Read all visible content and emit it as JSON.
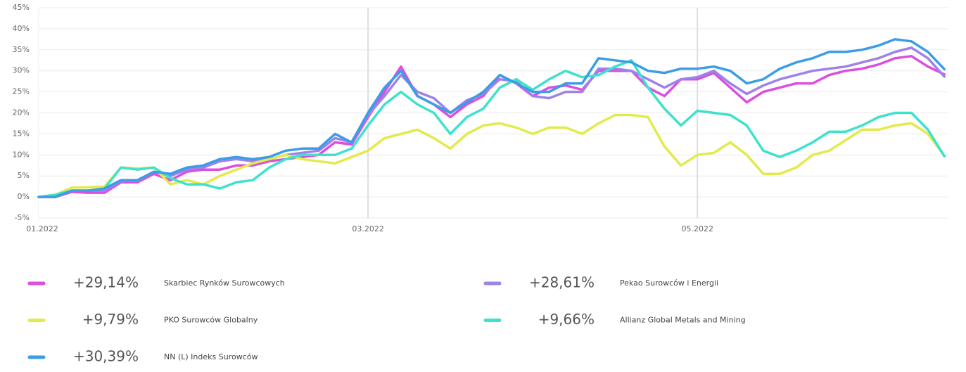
{
  "chart_data": {
    "type": "line",
    "categories": [
      "01.2022",
      null,
      null,
      null,
      null,
      null,
      null,
      null,
      null,
      null,
      null,
      null,
      null,
      null,
      null,
      null,
      null,
      null,
      null,
      null,
      "03.2022",
      null,
      null,
      null,
      null,
      null,
      null,
      null,
      null,
      null,
      null,
      null,
      null,
      null,
      null,
      null,
      null,
      null,
      null,
      null,
      "05.2022",
      null,
      null,
      null,
      null,
      null,
      null,
      null,
      null,
      null,
      null,
      null,
      null,
      null,
      null,
      null
    ],
    "ylim": [
      -5,
      45
    ],
    "yticks": [
      {
        "value": -5,
        "label": "-5%"
      },
      {
        "value": 0,
        "label": "0%"
      },
      {
        "value": 5,
        "label": "5%"
      },
      {
        "value": 10,
        "label": "10%"
      },
      {
        "value": 15,
        "label": "15%"
      },
      {
        "value": 20,
        "label": "20%"
      },
      {
        "value": 25,
        "label": "25%"
      },
      {
        "value": 30,
        "label": "30%"
      },
      {
        "value": 35,
        "label": "35%"
      },
      {
        "value": 40,
        "label": "40%"
      },
      {
        "value": 45,
        "label": "45%"
      }
    ],
    "grid": true,
    "series": [
      {
        "name": "Skarbiec Rynków Surowcowych",
        "color": "#dc4ee0",
        "change_label": "+29,14%",
        "values": [
          0,
          0,
          1.2,
          1,
          1,
          3.5,
          3.5,
          5.5,
          4,
          6,
          6.5,
          6.5,
          7.5,
          7.5,
          8.5,
          9,
          9.5,
          10,
          13,
          12.5,
          19,
          25,
          31,
          24,
          22,
          19,
          22,
          24,
          29,
          27,
          24,
          26,
          26.5,
          25.5,
          30,
          30,
          30,
          26,
          24,
          28,
          28,
          29.5,
          26,
          22.5,
          25,
          26,
          27,
          27,
          29,
          30,
          30.5,
          31.5,
          33,
          33.5,
          31,
          29.14
        ]
      },
      {
        "name": "Pekao Surowców i Energii",
        "color": "#9d82ea",
        "change_label": "+28,61%",
        "values": [
          0,
          0,
          1.5,
          1.5,
          1.5,
          3.8,
          3.8,
          6,
          5,
          6.5,
          7,
          8.5,
          9,
          8.5,
          9,
          10,
          10.5,
          11,
          14,
          13,
          19.5,
          24,
          29,
          25,
          23.5,
          20,
          23,
          24.5,
          28,
          27.5,
          24,
          23.5,
          25,
          25,
          30.5,
          30.5,
          30,
          28,
          26,
          28,
          28.5,
          30,
          27,
          24.5,
          26.5,
          28,
          29,
          30,
          30.5,
          31,
          32,
          33,
          34.5,
          35.5,
          33,
          28.61
        ]
      },
      {
        "name": "PKO Surowców Globalny",
        "color": "#e3ea4c",
        "change_label": "+9,79%",
        "values": [
          0,
          0.5,
          2.2,
          2.3,
          2.5,
          7,
          6.8,
          7,
          3,
          4,
          3,
          5,
          6.5,
          8,
          9,
          10,
          9,
          8.5,
          8,
          9.5,
          11,
          14,
          15,
          16,
          14,
          11.5,
          15,
          17,
          17.5,
          16.5,
          15,
          16.5,
          16.5,
          15,
          17.5,
          19.5,
          19.5,
          19,
          12,
          7.5,
          10,
          10.5,
          13,
          10,
          5.5,
          5.5,
          7,
          10,
          11,
          13.5,
          16,
          16,
          17,
          17.5,
          15,
          9.79
        ]
      },
      {
        "name": "Allianz Global Metals and Mining",
        "color": "#3ee2cc",
        "change_label": "+9,66%",
        "values": [
          0,
          0.5,
          1.5,
          1.5,
          2,
          7,
          6.5,
          7,
          4.5,
          3,
          3,
          2,
          3.5,
          4,
          7,
          9,
          10,
          10,
          10,
          11.5,
          17,
          22,
          25,
          22,
          20,
          15,
          19,
          21,
          26,
          28,
          25.5,
          28,
          30,
          28.5,
          29,
          31,
          32.5,
          26,
          21,
          17,
          20.5,
          20,
          19.5,
          17,
          11,
          9.5,
          11,
          13,
          15.5,
          15.5,
          17,
          19,
          20,
          20,
          16,
          9.66
        ]
      },
      {
        "name": "NN (L) Indeks Surowców",
        "color": "#3a9de6",
        "change_label": "+30,39%",
        "values": [
          0,
          0,
          1.5,
          1.5,
          2,
          4,
          4,
          6,
          5.5,
          7,
          7.5,
          9,
          9.5,
          9,
          9.5,
          11,
          11.5,
          11.5,
          15,
          13,
          20,
          26,
          30,
          24,
          22,
          20,
          22.5,
          25,
          29,
          27,
          25,
          25,
          27,
          27,
          33,
          32.5,
          32,
          30,
          29.5,
          30.5,
          30.5,
          31,
          30,
          27,
          28,
          30.5,
          32,
          33,
          34.5,
          34.5,
          35,
          36,
          37.5,
          37,
          34.5,
          30.39
        ]
      }
    ]
  }
}
